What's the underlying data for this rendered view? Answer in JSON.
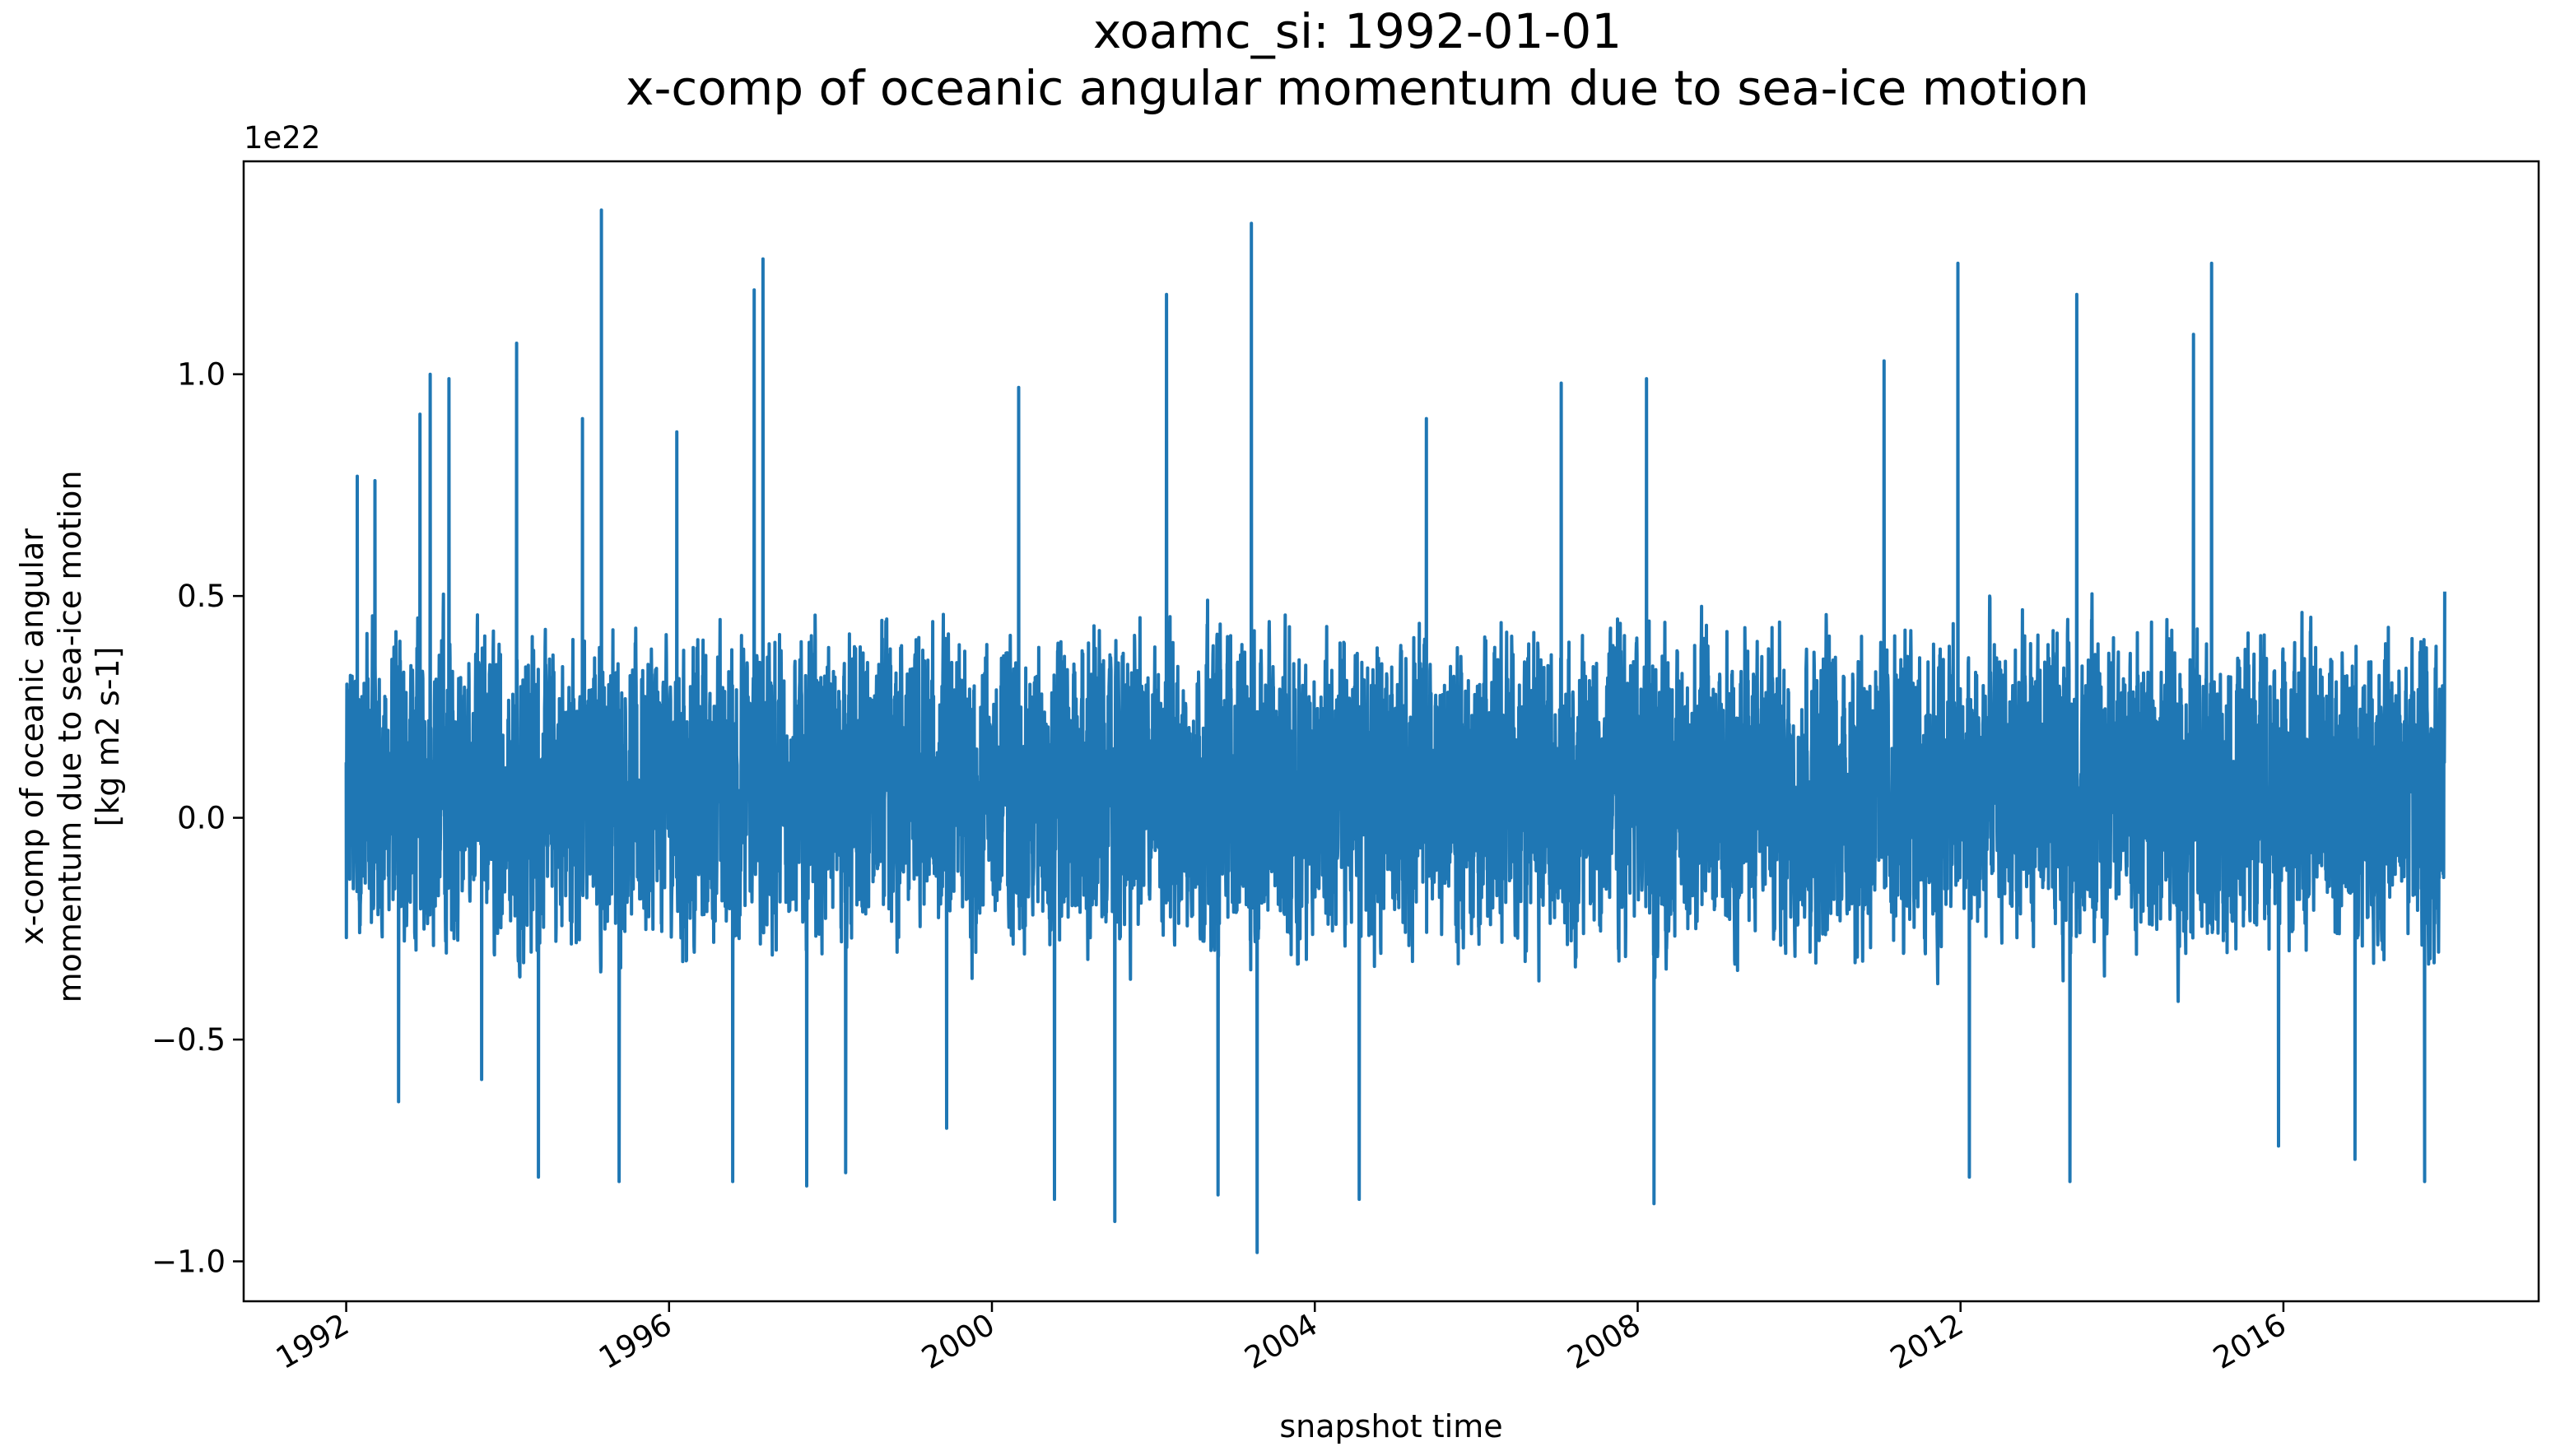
{
  "chart_data": {
    "type": "line",
    "title": "xoamc_si: 1992-01-01",
    "subtitle": "x-comp of oceanic angular momentum due to sea-ice motion",
    "xlabel": "snapshot time",
    "ylabel_lines": [
      "x-comp of oceanic angular",
      "momentum due to sea-ice motion",
      "[kg m2 s-1]"
    ],
    "y_offset_text": "1e22",
    "y_scale_factor": 1e+22,
    "xlim": [
      "1990-09-24",
      "2019-03-01"
    ],
    "ylim": [
      -1.09,
      1.48
    ],
    "x_ticks": [
      {
        "value": "1992-01-01",
        "label": "1992"
      },
      {
        "value": "1996-01-01",
        "label": "1996"
      },
      {
        "value": "2000-01-01",
        "label": "2000"
      },
      {
        "value": "2004-01-01",
        "label": "2004"
      },
      {
        "value": "2008-01-01",
        "label": "2008"
      },
      {
        "value": "2012-01-01",
        "label": "2012"
      },
      {
        "value": "2016-01-01",
        "label": "2016"
      }
    ],
    "y_ticks": [
      {
        "value": -1.0,
        "label": "−1.0"
      },
      {
        "value": -0.5,
        "label": "−0.5"
      },
      {
        "value": 0.0,
        "label": "0.0"
      },
      {
        "value": 0.5,
        "label": "0.5"
      },
      {
        "value": 1.0,
        "label": "1.0"
      }
    ],
    "grid": false,
    "line_color": "#1f77b4",
    "series": [
      {
        "data_note": "daily snapshots 1992-01-01 to 2017-12-31, values in units of 1e22 kg m2 s-1; approximate extremes and envelope read from plot",
        "start": "1992-01-01",
        "end": "2017-12-31",
        "extremes": [
          {
            "x": "1992-01-02",
            "y": -0.27
          },
          {
            "x": "1992-01-05",
            "y": 0.18
          },
          {
            "x": "1992-02-20",
            "y": 0.77
          },
          {
            "x": "1992-05-10",
            "y": 0.76
          },
          {
            "x": "1992-08-25",
            "y": -0.64
          },
          {
            "x": "1992-11-30",
            "y": 0.91
          },
          {
            "x": "1993-01-15",
            "y": 1.0
          },
          {
            "x": "1993-04-10",
            "y": 0.99
          },
          {
            "x": "1993-09-05",
            "y": -0.59
          },
          {
            "x": "1994-02-10",
            "y": 1.07
          },
          {
            "x": "1994-05-20",
            "y": -0.81
          },
          {
            "x": "1994-12-05",
            "y": 0.9
          },
          {
            "x": "1995-03-01",
            "y": 1.37
          },
          {
            "x": "1995-05-20",
            "y": -0.82
          },
          {
            "x": "1996-02-05",
            "y": 0.87
          },
          {
            "x": "1996-10-15",
            "y": -0.82
          },
          {
            "x": "1997-01-20",
            "y": 1.19
          },
          {
            "x": "1997-03-01",
            "y": 1.26
          },
          {
            "x": "1997-09-15",
            "y": -0.83
          },
          {
            "x": "1998-03-10",
            "y": -0.8
          },
          {
            "x": "1999-06-10",
            "y": -0.7
          },
          {
            "x": "2000-05-01",
            "y": 0.97
          },
          {
            "x": "2000-10-10",
            "y": -0.86
          },
          {
            "x": "2001-07-10",
            "y": -0.91
          },
          {
            "x": "2002-03-01",
            "y": 1.18
          },
          {
            "x": "2002-10-20",
            "y": -0.85
          },
          {
            "x": "2003-03-20",
            "y": 1.34
          },
          {
            "x": "2003-04-15",
            "y": -0.98
          },
          {
            "x": "2004-07-20",
            "y": -0.86
          },
          {
            "x": "2005-05-20",
            "y": 0.9
          },
          {
            "x": "2007-01-20",
            "y": 0.98
          },
          {
            "x": "2008-02-10",
            "y": 0.99
          },
          {
            "x": "2008-03-15",
            "y": -0.87
          },
          {
            "x": "2011-01-20",
            "y": 1.03
          },
          {
            "x": "2011-12-20",
            "y": 1.25
          },
          {
            "x": "2012-02-10",
            "y": -0.81
          },
          {
            "x": "2013-06-10",
            "y": 1.18
          },
          {
            "x": "2013-05-10",
            "y": -0.82
          },
          {
            "x": "2014-11-20",
            "y": 1.09
          },
          {
            "x": "2015-02-10",
            "y": 1.25
          },
          {
            "x": "2015-12-10",
            "y": -0.74
          },
          {
            "x": "2016-11-20",
            "y": -0.77
          },
          {
            "x": "2017-10-01",
            "y": -0.82
          },
          {
            "x": "2017-12-31",
            "y": 0.51
          }
        ]
      }
    ]
  }
}
